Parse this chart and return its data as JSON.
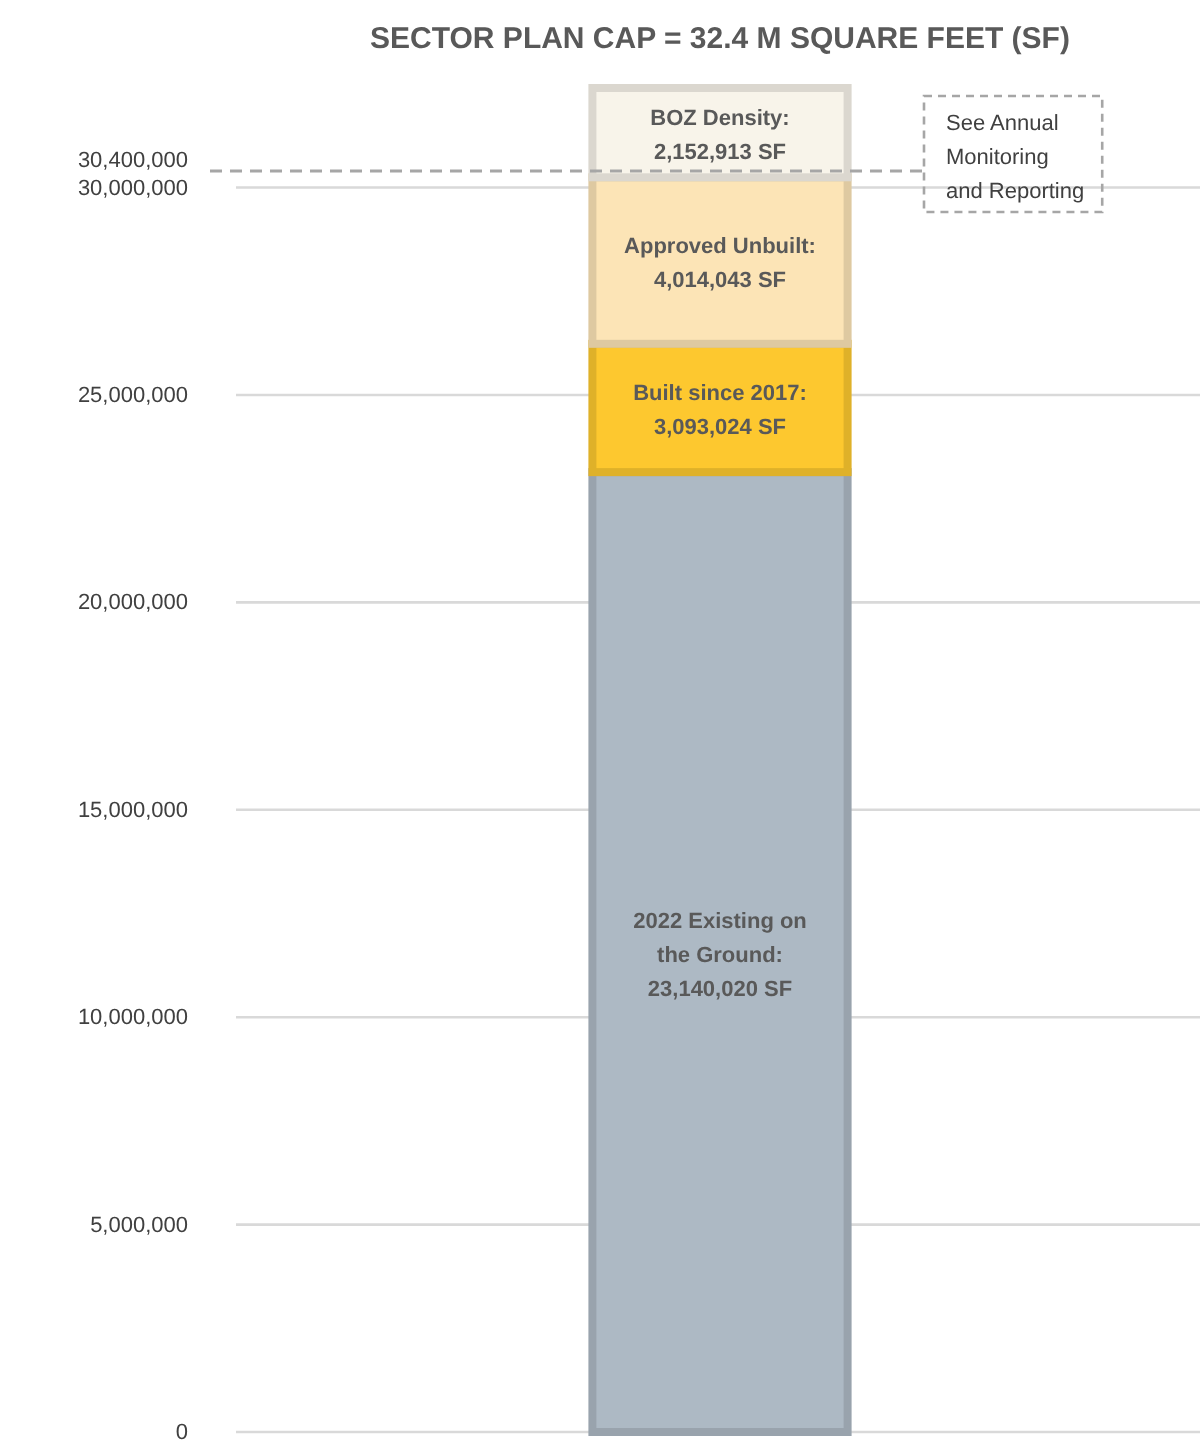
{
  "chart_data": {
    "type": "bar",
    "stacked": true,
    "title": "SECTOR PLAN CAP = 32.4 M SQUARE FEET (SF)",
    "categories": [
      null
    ],
    "series": [
      {
        "name": "2022 Existing on the Ground:",
        "color": "#adb9c4",
        "values": [
          23140020
        ],
        "value_labels": [
          "23,140,020 SF"
        ]
      },
      {
        "name": "Built since 2017:",
        "color": "#fdc82f",
        "values": [
          3093024
        ],
        "value_labels": [
          "3,093,024 SF"
        ]
      },
      {
        "name": "Approved Unbuilt:",
        "color": "#fce4b6",
        "values": [
          4014043
        ],
        "value_labels": [
          "4,014,043 SF"
        ]
      },
      {
        "name": "BOZ Density:",
        "color": "#f8f4ea",
        "values": [
          2152913
        ],
        "value_labels": [
          "2,152,913 SF"
        ]
      }
    ],
    "ylim": [
      0,
      32400000
    ],
    "yticks": [
      0,
      {
        "value": 5000000,
        "label": "5,000,000"
      },
      {
        "value": 10000000,
        "label": "10,000,000"
      },
      {
        "value": 15000000,
        "label": "15,000,000"
      },
      {
        "value": 20000000,
        "label": "20,000,000"
      },
      {
        "value": 25000000,
        "label": "25,000,000"
      },
      {
        "value": 30000000,
        "label": "30,000,000"
      },
      {
        "value": 30400000,
        "label": "30,400,000"
      }
    ],
    "grid": "y",
    "ref_lines": [
      {
        "axis": "y",
        "value": 30400000,
        "line_style": "dashed",
        "color": "#a6a6a6"
      }
    ],
    "annotations": [
      "See Annual Monitoring and Reporting"
    ]
  }
}
